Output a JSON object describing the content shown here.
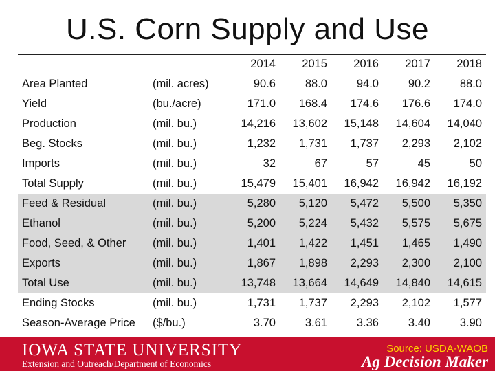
{
  "title": "U.S. Corn Supply and Use",
  "columns": [
    "2014",
    "2015",
    "2016",
    "2017",
    "2018"
  ],
  "rows": [
    {
      "label": "Area Planted",
      "unit": "(mil. acres)",
      "values": [
        "90.6",
        "88.0",
        "94.0",
        "90.2",
        "88.0"
      ]
    },
    {
      "label": "Yield",
      "unit": "(bu./acre)",
      "values": [
        "171.0",
        "168.4",
        "174.6",
        "176.6",
        "174.0"
      ]
    },
    {
      "label": "Production",
      "unit": "(mil. bu.)",
      "values": [
        "14,216",
        "13,602",
        "15,148",
        "14,604",
        "14,040"
      ]
    },
    {
      "label": "Beg. Stocks",
      "unit": "(mil. bu.)",
      "values": [
        "1,232",
        "1,731",
        "1,737",
        "2,293",
        "2,102"
      ]
    },
    {
      "label": "Imports",
      "unit": "(mil. bu.)",
      "values": [
        "32",
        "67",
        "57",
        "45",
        "50"
      ]
    },
    {
      "label": "Total Supply",
      "unit": "(mil. bu.)",
      "values": [
        "15,479",
        "15,401",
        "16,942",
        "16,942",
        "16,192"
      ]
    },
    {
      "label": "Feed & Residual",
      "unit": "(mil. bu.)",
      "values": [
        "5,280",
        "5,120",
        "5,472",
        "5,500",
        "5,350"
      ]
    },
    {
      "label": "Ethanol",
      "unit": "(mil. bu.)",
      "values": [
        "5,200",
        "5,224",
        "5,432",
        "5,575",
        "5,675"
      ]
    },
    {
      "label": "Food, Seed, & Other",
      "unit": "(mil. bu.)",
      "values": [
        "1,401",
        "1,422",
        "1,451",
        "1,465",
        "1,490"
      ]
    },
    {
      "label": "Exports",
      "unit": "(mil. bu.)",
      "values": [
        "1,867",
        "1,898",
        "2,293",
        "2,300",
        "2,100"
      ]
    },
    {
      "label": "Total Use",
      "unit": "(mil. bu.)",
      "values": [
        "13,748",
        "13,664",
        "14,649",
        "14,840",
        "14,615"
      ]
    },
    {
      "label": "Ending Stocks",
      "unit": "(mil. bu.)",
      "values": [
        "1,731",
        "1,737",
        "2,293",
        "2,102",
        "1,577"
      ]
    },
    {
      "label": "Season-Average Price",
      "unit": "($/bu.)",
      "values": [
        "3.70",
        "3.61",
        "3.36",
        "3.40",
        "3.90"
      ]
    }
  ],
  "footer": {
    "university": "IOWA STATE UNIVERSITY",
    "extension": "Extension and Outreach/Department of Economics",
    "source": "Source: USDA-WAOB",
    "brand": "Ag Decision Maker"
  },
  "colors": {
    "footer_bg": "#c8102e",
    "source_text": "#ffd100",
    "use_rows_bg": "#d9d9d9"
  }
}
